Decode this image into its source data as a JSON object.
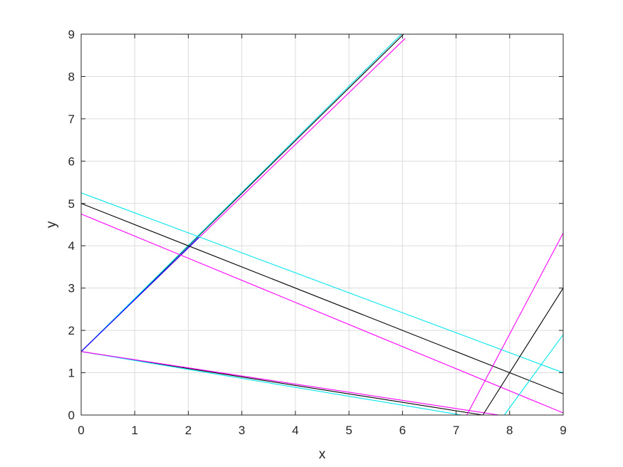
{
  "chart_data": {
    "type": "line",
    "title": "",
    "xlabel": "x",
    "ylabel": "y",
    "xlim": [
      0,
      9
    ],
    "ylim": [
      0,
      9
    ],
    "xticks": [
      0,
      1,
      2,
      3,
      4,
      5,
      6,
      7,
      8,
      9
    ],
    "yticks": [
      0,
      1,
      2,
      3,
      4,
      5,
      6,
      7,
      8,
      9
    ],
    "grid": true,
    "legend": "none",
    "series": [
      {
        "color": "#000000",
        "x": [
          0,
          6.02
        ],
        "y": [
          1.5,
          9
        ]
      },
      {
        "color": "#00e5ee",
        "x": [
          0,
          5.98
        ],
        "y": [
          1.5,
          9
        ]
      },
      {
        "color": "#ff00ff",
        "x": [
          0,
          6.05
        ],
        "y": [
          1.5,
          8.9
        ]
      },
      {
        "color": "#0000ff",
        "x": [
          0,
          2.2
        ],
        "y": [
          1.5,
          4.2
        ]
      },
      {
        "color": "#00e5ee",
        "x": [
          0,
          9
        ],
        "y": [
          5.25,
          1.0
        ]
      },
      {
        "color": "#000000",
        "x": [
          0,
          9
        ],
        "y": [
          5.0,
          0.5
        ]
      },
      {
        "color": "#ff00ff",
        "x": [
          0,
          9
        ],
        "y": [
          4.75,
          0.05
        ]
      },
      {
        "color": "#000000",
        "x": [
          0,
          7.5
        ],
        "y": [
          1.5,
          0
        ]
      },
      {
        "color": "#00e5ee",
        "x": [
          0,
          7.1
        ],
        "y": [
          1.5,
          0
        ]
      },
      {
        "color": "#ff00ff",
        "x": [
          0,
          7.8
        ],
        "y": [
          1.5,
          0
        ]
      },
      {
        "color": "#ff00ff",
        "x": [
          7.2,
          9
        ],
        "y": [
          0,
          4.3
        ]
      },
      {
        "color": "#000000",
        "x": [
          7.5,
          9
        ],
        "y": [
          0,
          3.0
        ]
      },
      {
        "color": "#00e5ee",
        "x": [
          7.9,
          9
        ],
        "y": [
          0,
          1.9
        ]
      }
    ]
  }
}
